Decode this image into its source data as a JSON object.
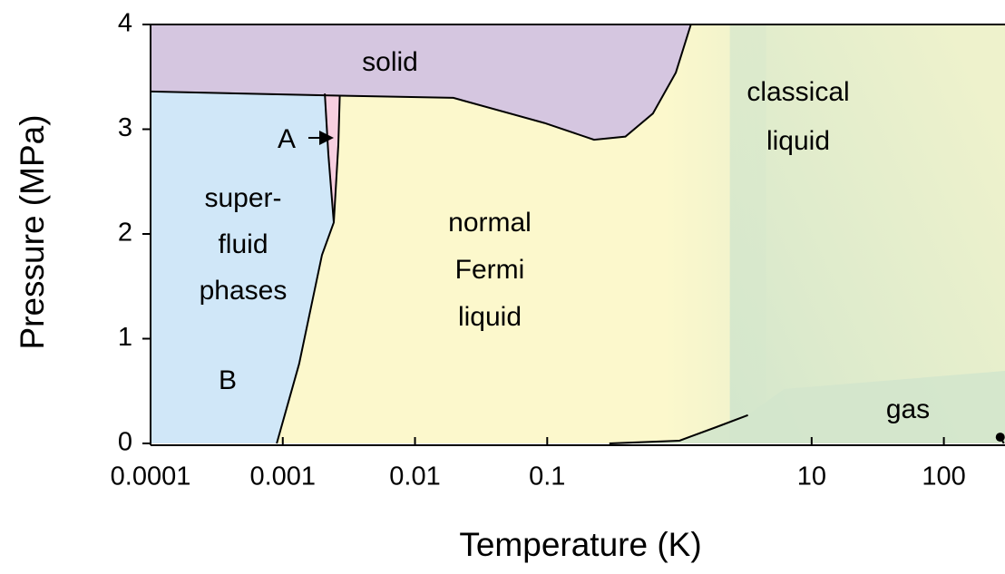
{
  "chart_data": {
    "type": "phase-diagram",
    "xlabel": "Temperature (K)",
    "ylabel": "Pressure (MPa)",
    "xscale": "log",
    "xlim": [
      0.0001,
      290
    ],
    "ylim": [
      0,
      4
    ],
    "xticks": [
      0.0001,
      0.001,
      0.01,
      0.1,
      10,
      100
    ],
    "yticks": [
      0,
      1,
      2,
      3,
      4
    ],
    "boundaries": [
      {
        "x": [
          0.0001,
          0.0027,
          0.0195,
          0.095,
          0.226,
          0.39,
          0.63,
          0.94,
          1.22
        ],
        "y": [
          3.36,
          3.32,
          3.3,
          3.06,
          2.9,
          2.93,
          3.15,
          3.54,
          4.0
        ]
      },
      {
        "x": [
          0.0009,
          0.00133,
          0.00198,
          0.00243,
          0.00263,
          0.0027
        ],
        "y": [
          0,
          0.76,
          1.8,
          2.11,
          2.85,
          3.32
        ]
      },
      {
        "x": [
          0.00243,
          0.00221,
          0.00208
        ],
        "y": [
          2.11,
          2.76,
          3.34
        ]
      },
      {
        "x": [
          0.295,
          1.0,
          1.9,
          3.3
        ],
        "y": [
          0,
          0.026,
          0.156,
          0.27
        ]
      }
    ],
    "point": {
      "x": 267,
      "y": 0.06
    },
    "region_colors": {
      "solid": "#d5c6e0",
      "superfluid": "#d0e7f8",
      "a_phase": "#f7cfe0",
      "liquid": "#fcf8cc",
      "gas": "#d3e6cc"
    },
    "annotations": [
      {
        "lines": [
          "solid"
        ]
      },
      {
        "lines": [
          "classical",
          "liquid"
        ]
      },
      {
        "lines": [
          "super-",
          "fluid",
          "phases"
        ]
      },
      {
        "lines": [
          "normal",
          "Fermi",
          "liquid"
        ]
      },
      {
        "lines": [
          "gas"
        ]
      },
      {
        "lines": [
          "A"
        ]
      },
      {
        "lines": [
          "B"
        ]
      }
    ]
  }
}
